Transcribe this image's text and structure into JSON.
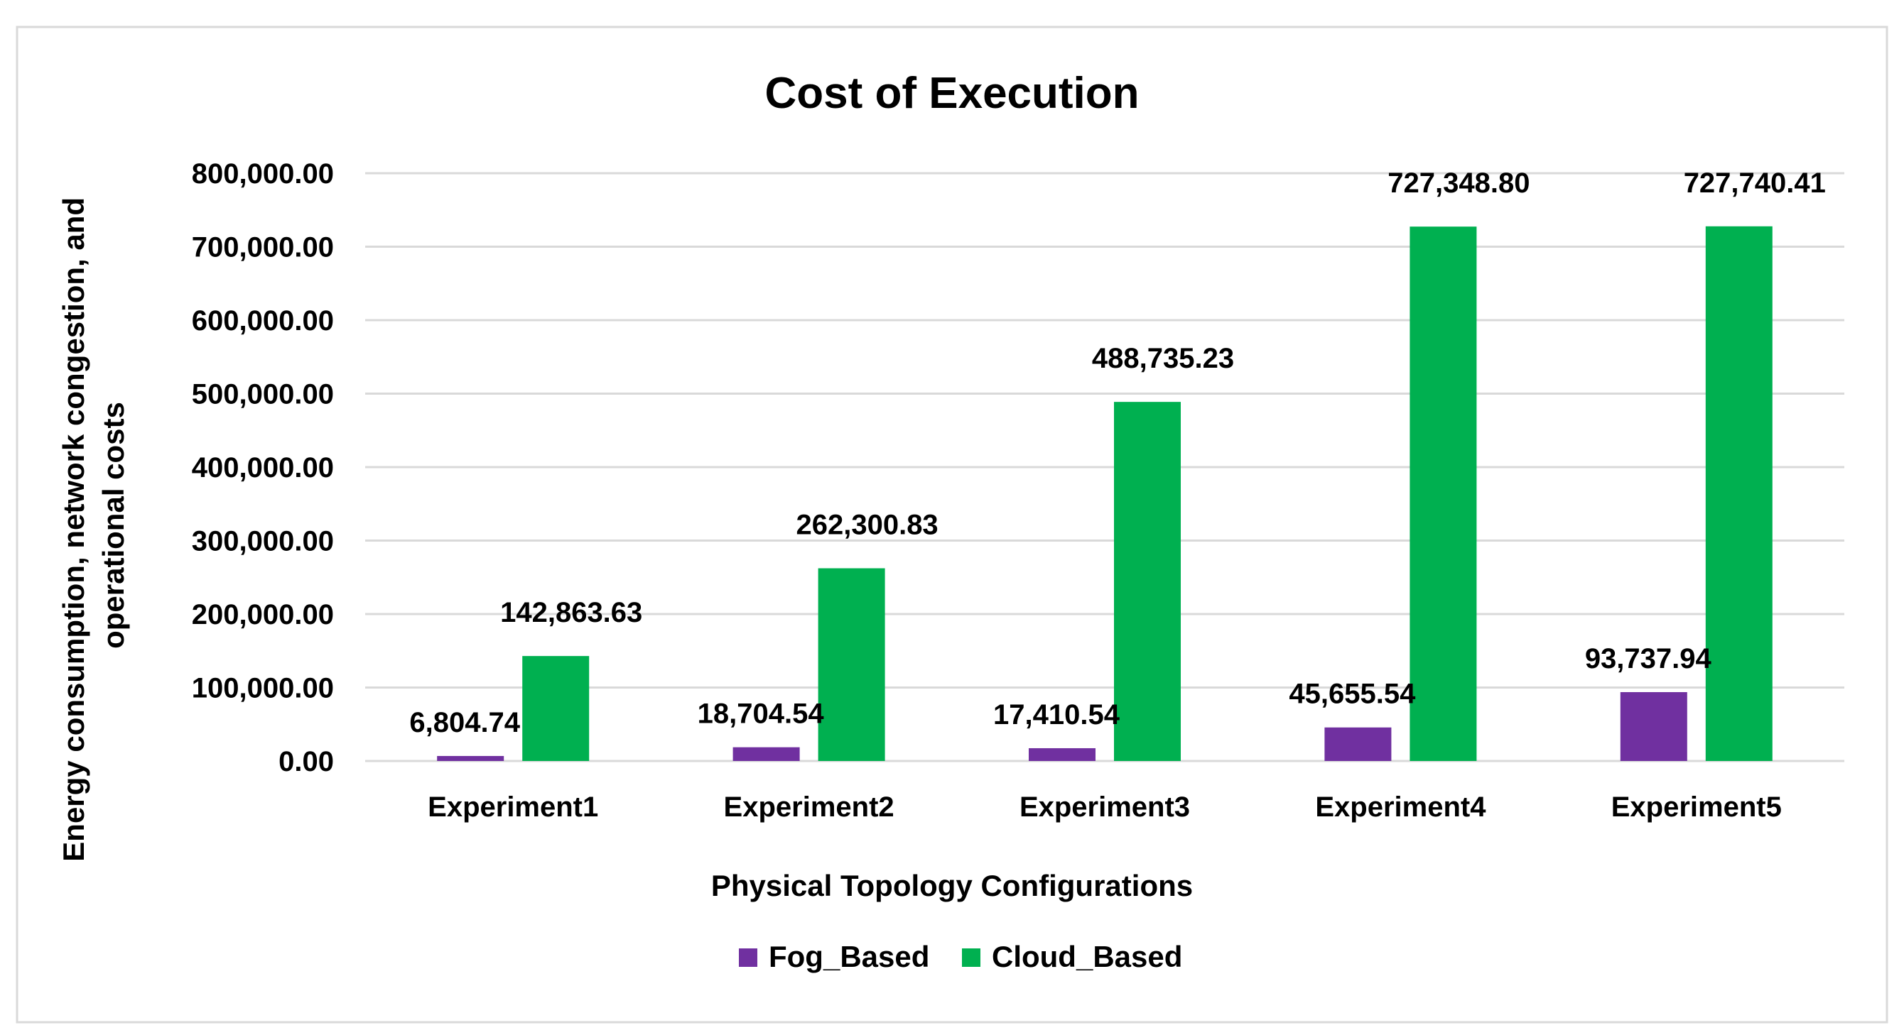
{
  "chart_data": {
    "type": "bar",
    "title": "Cost of Execution",
    "xlabel": "Physical Topology Configurations",
    "ylabel_lines": [
      "Energy consumption, network congestion, and",
      "operational costs"
    ],
    "categories": [
      "Experiment1",
      "Experiment2",
      "Experiment3",
      "Experiment4",
      "Experiment5"
    ],
    "ylim": [
      0,
      800000
    ],
    "yticks": [
      0,
      100000,
      200000,
      300000,
      400000,
      500000,
      600000,
      700000,
      800000
    ],
    "ytick_labels": [
      "0.00",
      "100,000.00",
      "200,000.00",
      "300,000.00",
      "400,000.00",
      "500,000.00",
      "600,000.00",
      "700,000.00",
      "800,000.00"
    ],
    "grid": true,
    "legend_position": "bottom",
    "series": [
      {
        "name": "Fog_Based",
        "color": "#7030A0",
        "values": [
          6804.74,
          18704.54,
          17410.54,
          45655.54,
          93737.94
        ],
        "labels": [
          "6,804.74",
          "18,704.54",
          "17,410.54",
          "45,655.54",
          "93,737.94"
        ]
      },
      {
        "name": "Cloud_Based",
        "color": "#00B050",
        "values": [
          142863.63,
          262300.83,
          488735.23,
          727348.8,
          727740.41
        ],
        "labels": [
          "142,863.63",
          "262,300.83",
          "488,735.23",
          "727,348.80",
          "727,740.41"
        ]
      }
    ]
  }
}
